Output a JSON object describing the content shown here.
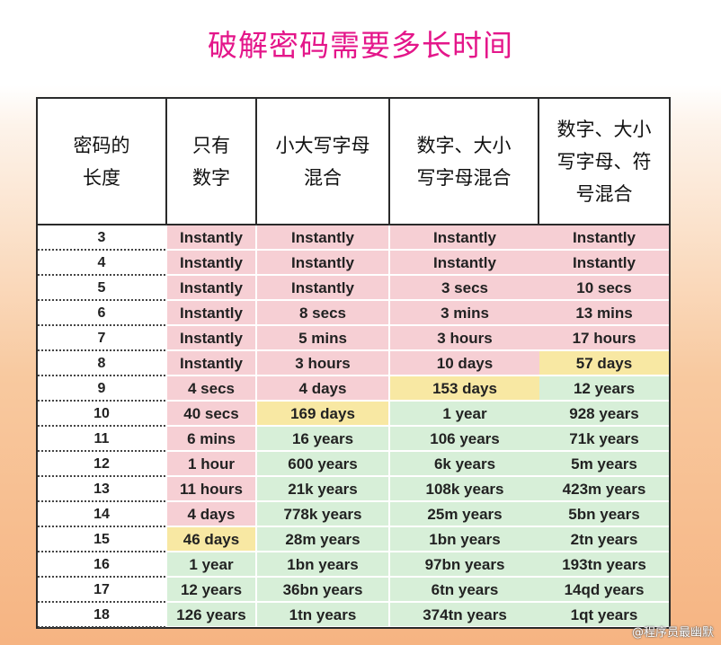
{
  "title": "破解密码需要多长时间",
  "watermark": "@程序员最幽默",
  "colors": {
    "red": "#f6cfd4",
    "yellow": "#f8e8a3",
    "green": "#d7efd8",
    "title": "#e4168a"
  },
  "headers": {
    "length": [
      "密码的",
      "长度"
    ],
    "numbers_only": [
      "只有",
      "数字"
    ],
    "mixed_case": [
      "小大写字母",
      "混合"
    ],
    "numbers_mixed_case": [
      "数字、大小",
      "写字母混合"
    ],
    "numbers_mixed_case_symbols": [
      "数字、大小",
      "写字母、符",
      "号混合"
    ]
  },
  "rows": [
    {
      "length": "3",
      "cells": [
        {
          "t": "Instantly",
          "c": "red"
        },
        {
          "t": "Instantly",
          "c": "red"
        },
        {
          "t": "Instantly",
          "c": "red"
        },
        {
          "t": "Instantly",
          "c": "red"
        }
      ]
    },
    {
      "length": "4",
      "cells": [
        {
          "t": "Instantly",
          "c": "red"
        },
        {
          "t": "Instantly",
          "c": "red"
        },
        {
          "t": "Instantly",
          "c": "red"
        },
        {
          "t": "Instantly",
          "c": "red"
        }
      ]
    },
    {
      "length": "5",
      "cells": [
        {
          "t": "Instantly",
          "c": "red"
        },
        {
          "t": "Instantly",
          "c": "red"
        },
        {
          "t": "3 secs",
          "c": "red"
        },
        {
          "t": "10 secs",
          "c": "red"
        }
      ]
    },
    {
      "length": "6",
      "cells": [
        {
          "t": "Instantly",
          "c": "red"
        },
        {
          "t": "8 secs",
          "c": "red"
        },
        {
          "t": "3 mins",
          "c": "red"
        },
        {
          "t": "13 mins",
          "c": "red"
        }
      ]
    },
    {
      "length": "7",
      "cells": [
        {
          "t": "Instantly",
          "c": "red"
        },
        {
          "t": "5 mins",
          "c": "red"
        },
        {
          "t": "3 hours",
          "c": "red"
        },
        {
          "t": "17 hours",
          "c": "red"
        }
      ]
    },
    {
      "length": "8",
      "cells": [
        {
          "t": "Instantly",
          "c": "red"
        },
        {
          "t": "3 hours",
          "c": "red"
        },
        {
          "t": "10 days",
          "c": "red"
        },
        {
          "t": "57 days",
          "c": "yellow"
        }
      ]
    },
    {
      "length": "9",
      "cells": [
        {
          "t": "4 secs",
          "c": "red"
        },
        {
          "t": "4 days",
          "c": "red"
        },
        {
          "t": "153 days",
          "c": "yellow"
        },
        {
          "t": "12 years",
          "c": "green"
        }
      ]
    },
    {
      "length": "10",
      "cells": [
        {
          "t": "40 secs",
          "c": "red"
        },
        {
          "t": "169 days",
          "c": "yellow"
        },
        {
          "t": "1 year",
          "c": "green"
        },
        {
          "t": "928 years",
          "c": "green"
        }
      ]
    },
    {
      "length": "11",
      "cells": [
        {
          "t": "6 mins",
          "c": "red"
        },
        {
          "t": "16 years",
          "c": "green"
        },
        {
          "t": "106 years",
          "c": "green"
        },
        {
          "t": "71k years",
          "c": "green"
        }
      ]
    },
    {
      "length": "12",
      "cells": [
        {
          "t": "1 hour",
          "c": "red"
        },
        {
          "t": "600 years",
          "c": "green"
        },
        {
          "t": "6k years",
          "c": "green"
        },
        {
          "t": "5m years",
          "c": "green"
        }
      ]
    },
    {
      "length": "13",
      "cells": [
        {
          "t": "11 hours",
          "c": "red"
        },
        {
          "t": "21k years",
          "c": "green"
        },
        {
          "t": "108k years",
          "c": "green"
        },
        {
          "t": "423m years",
          "c": "green"
        }
      ]
    },
    {
      "length": "14",
      "cells": [
        {
          "t": "4 days",
          "c": "red"
        },
        {
          "t": "778k years",
          "c": "green"
        },
        {
          "t": "25m years",
          "c": "green"
        },
        {
          "t": "5bn years",
          "c": "green"
        }
      ]
    },
    {
      "length": "15",
      "cells": [
        {
          "t": "46 days",
          "c": "yellow"
        },
        {
          "t": "28m years",
          "c": "green"
        },
        {
          "t": "1bn years",
          "c": "green"
        },
        {
          "t": "2tn years",
          "c": "green"
        }
      ]
    },
    {
      "length": "16",
      "cells": [
        {
          "t": "1 year",
          "c": "green"
        },
        {
          "t": "1bn years",
          "c": "green"
        },
        {
          "t": "97bn years",
          "c": "green"
        },
        {
          "t": "193tn years",
          "c": "green"
        }
      ]
    },
    {
      "length": "17",
      "cells": [
        {
          "t": "12 years",
          "c": "green"
        },
        {
          "t": "36bn years",
          "c": "green"
        },
        {
          "t": "6tn years",
          "c": "green"
        },
        {
          "t": "14qd years",
          "c": "green"
        }
      ]
    },
    {
      "length": "18",
      "cells": [
        {
          "t": "126 years",
          "c": "green"
        },
        {
          "t": "1tn years",
          "c": "green"
        },
        {
          "t": "374tn years",
          "c": "green"
        },
        {
          "t": "1qt years",
          "c": "green"
        }
      ]
    }
  ]
}
